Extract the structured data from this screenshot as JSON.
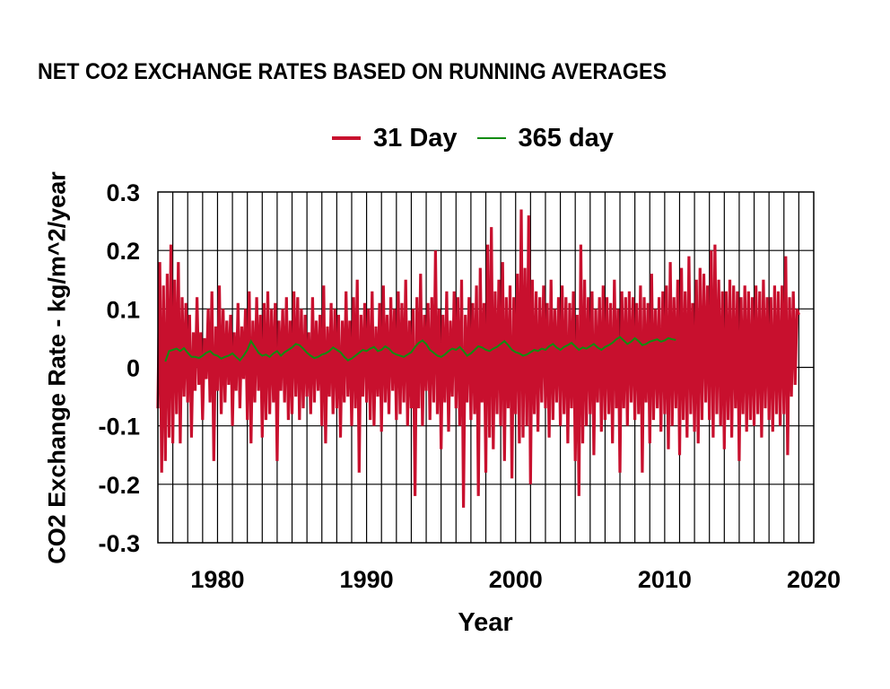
{
  "chart_data": {
    "type": "line",
    "title": "NET CO2 EXCHANGE RATES BASED ON RUNNING AVERAGES",
    "xlabel": "Year",
    "ylabel": "CO2 Exchange Rate - kg/m^2/year",
    "xlim": [
      1976,
      2020
    ],
    "ylim": [
      -0.3,
      0.3
    ],
    "x_ticks": [
      1980,
      1990,
      2000,
      2010,
      2020
    ],
    "x_tick_labels": [
      "1980",
      "1990",
      "2000",
      "2010",
      "2020"
    ],
    "y_ticks": [
      0.3,
      0.2,
      0.1,
      0,
      -0.1,
      -0.2,
      -0.3
    ],
    "y_tick_labels": [
      "0.3",
      "0.2",
      "0.1",
      "0",
      "-0.1",
      "-0.2",
      "-0.3"
    ],
    "grid": {
      "x_minor_yearly": true,
      "y_major": true
    },
    "legend": {
      "placement": "top-center",
      "entries": [
        "31 Day",
        "365 day"
      ]
    },
    "series": [
      {
        "name": "31 Day",
        "color": "#c8102e",
        "x_start": 1976.0,
        "x_step": 0.125,
        "values": [
          -0.07,
          0.18,
          -0.18,
          0.14,
          -0.16,
          0.16,
          -0.12,
          0.21,
          -0.13,
          0.15,
          -0.08,
          0.18,
          -0.13,
          0.12,
          -0.05,
          0.11,
          -0.06,
          0.09,
          -0.12,
          0.06,
          -0.04,
          0.12,
          -0.03,
          0.06,
          -0.09,
          0.05,
          -0.02,
          0.1,
          -0.06,
          0.13,
          -0.16,
          0.07,
          -0.04,
          0.14,
          -0.08,
          0.1,
          -0.06,
          0.08,
          -0.03,
          0.09,
          -0.1,
          0.06,
          -0.04,
          0.11,
          -0.07,
          0.07,
          -0.02,
          0.1,
          -0.09,
          0.13,
          -0.13,
          0.08,
          -0.06,
          0.12,
          -0.04,
          0.09,
          -0.12,
          0.11,
          -0.09,
          0.13,
          -0.08,
          0.1,
          -0.06,
          0.11,
          -0.16,
          0.08,
          -0.04,
          0.1,
          -0.06,
          0.12,
          -0.09,
          0.08,
          -0.08,
          0.13,
          -0.05,
          0.12,
          -0.09,
          0.1,
          -0.07,
          0.09,
          -0.05,
          0.06,
          -0.08,
          0.12,
          -0.06,
          0.08,
          -0.04,
          0.09,
          -0.1,
          0.14,
          -0.13,
          0.07,
          -0.05,
          0.11,
          -0.08,
          0.1,
          -0.07,
          0.09,
          -0.12,
          0.08,
          -0.06,
          0.13,
          -0.05,
          0.08,
          -0.1,
          0.12,
          -0.07,
          0.15,
          -0.18,
          0.09,
          -0.05,
          0.11,
          -0.06,
          0.1,
          -0.09,
          0.13,
          -0.1,
          0.07,
          -0.05,
          0.11,
          -0.11,
          0.14,
          -0.06,
          0.09,
          -0.08,
          0.12,
          -0.04,
          0.1,
          -0.09,
          0.13,
          -0.08,
          0.11,
          -0.06,
          0.15,
          -0.1,
          0.08,
          -0.07,
          0.1,
          -0.22,
          0.12,
          -0.07,
          0.16,
          -0.1,
          0.09,
          -0.04,
          0.11,
          -0.09,
          0.12,
          -0.06,
          0.2,
          -0.08,
          0.1,
          -0.14,
          0.09,
          -0.06,
          0.13,
          -0.11,
          0.08,
          -0.05,
          0.13,
          -0.07,
          0.12,
          -0.1,
          0.15,
          -0.24,
          0.09,
          -0.06,
          0.12,
          -0.09,
          0.11,
          -0.08,
          0.14,
          -0.22,
          0.17,
          -0.06,
          0.11,
          -0.18,
          0.21,
          -0.12,
          0.24,
          -0.14,
          0.13,
          -0.08,
          0.15,
          -0.1,
          0.18,
          -0.16,
          0.12,
          -0.07,
          0.14,
          -0.19,
          0.12,
          -0.08,
          0.16,
          -0.13,
          0.27,
          -0.12,
          0.17,
          -0.1,
          0.26,
          -0.2,
          0.15,
          -0.08,
          0.13,
          -0.11,
          0.12,
          -0.06,
          0.14,
          -0.07,
          0.11,
          -0.12,
          0.15,
          -0.09,
          0.1,
          -0.06,
          0.12,
          -0.1,
          0.14,
          -0.08,
          0.12,
          -0.13,
          0.11,
          -0.07,
          0.13,
          -0.16,
          0.09,
          -0.22,
          0.21,
          -0.13,
          0.15,
          -0.1,
          0.12,
          -0.08,
          0.13,
          -0.15,
          0.1,
          -0.06,
          0.12,
          -0.11,
          0.14,
          -0.09,
          0.12,
          -0.08,
          0.11,
          -0.13,
          0.15,
          -0.07,
          0.1,
          -0.18,
          0.13,
          -0.07,
          0.12,
          -0.1,
          0.13,
          -0.06,
          0.12,
          -0.09,
          0.11,
          -0.08,
          0.14,
          -0.18,
          0.12,
          -0.06,
          0.11,
          -0.13,
          0.16,
          -0.09,
          0.1,
          -0.07,
          0.12,
          -0.11,
          0.13,
          -0.08,
          0.14,
          -0.14,
          0.18,
          -0.1,
          0.12,
          -0.07,
          0.15,
          -0.15,
          0.17,
          -0.09,
          0.13,
          -0.12,
          0.19,
          -0.08,
          0.11,
          -0.11,
          0.15,
          -0.13,
          0.17,
          -0.09,
          0.16,
          -0.06,
          0.14,
          -0.09,
          0.2,
          -0.12,
          0.21,
          -0.08,
          0.15,
          -0.1,
          0.13,
          -0.14,
          0.13,
          -0.09,
          0.15,
          -0.12,
          0.14,
          -0.07,
          0.13,
          -0.16,
          0.12,
          -0.08,
          0.14,
          -0.11,
          0.13,
          -0.09,
          0.12,
          -0.1,
          0.14,
          -0.08,
          0.13,
          -0.12,
          0.15,
          -0.07,
          0.12,
          -0.09,
          0.12,
          -0.11,
          0.14,
          -0.08,
          0.13,
          -0.1,
          0.14,
          -0.08,
          0.19,
          -0.15,
          0.12,
          -0.05,
          0.13,
          -0.03,
          0.1,
          0.09
        ]
      },
      {
        "name": "365 day",
        "color": "#118c11",
        "x_start": 1976.5,
        "x_step": 0.25,
        "values": [
          0.01,
          0.028,
          0.03,
          0.032,
          0.028,
          0.033,
          0.025,
          0.018,
          0.018,
          0.016,
          0.02,
          0.025,
          0.028,
          0.022,
          0.02,
          0.015,
          0.018,
          0.02,
          0.024,
          0.018,
          0.012,
          0.02,
          0.03,
          0.045,
          0.035,
          0.025,
          0.02,
          0.022,
          0.018,
          0.024,
          0.028,
          0.02,
          0.026,
          0.03,
          0.034,
          0.04,
          0.038,
          0.032,
          0.025,
          0.02,
          0.016,
          0.018,
          0.022,
          0.024,
          0.028,
          0.034,
          0.03,
          0.026,
          0.018,
          0.012,
          0.015,
          0.02,
          0.025,
          0.03,
          0.028,
          0.032,
          0.035,
          0.028,
          0.03,
          0.036,
          0.032,
          0.025,
          0.022,
          0.02,
          0.018,
          0.022,
          0.026,
          0.035,
          0.042,
          0.046,
          0.04,
          0.03,
          0.025,
          0.02,
          0.018,
          0.022,
          0.028,
          0.032,
          0.03,
          0.035,
          0.028,
          0.02,
          0.024,
          0.03,
          0.036,
          0.034,
          0.03,
          0.028,
          0.032,
          0.035,
          0.04,
          0.045,
          0.038,
          0.03,
          0.026,
          0.024,
          0.02,
          0.022,
          0.026,
          0.03,
          0.028,
          0.032,
          0.03,
          0.036,
          0.04,
          0.034,
          0.03,
          0.035,
          0.038,
          0.042,
          0.036,
          0.03,
          0.034,
          0.032,
          0.036,
          0.04,
          0.034,
          0.03,
          0.035,
          0.038,
          0.042,
          0.048,
          0.052,
          0.046,
          0.04,
          0.044,
          0.05,
          0.045,
          0.038,
          0.04,
          0.044,
          0.046,
          0.048,
          0.044,
          0.046,
          0.05,
          0.048,
          0.047
        ]
      }
    ]
  }
}
